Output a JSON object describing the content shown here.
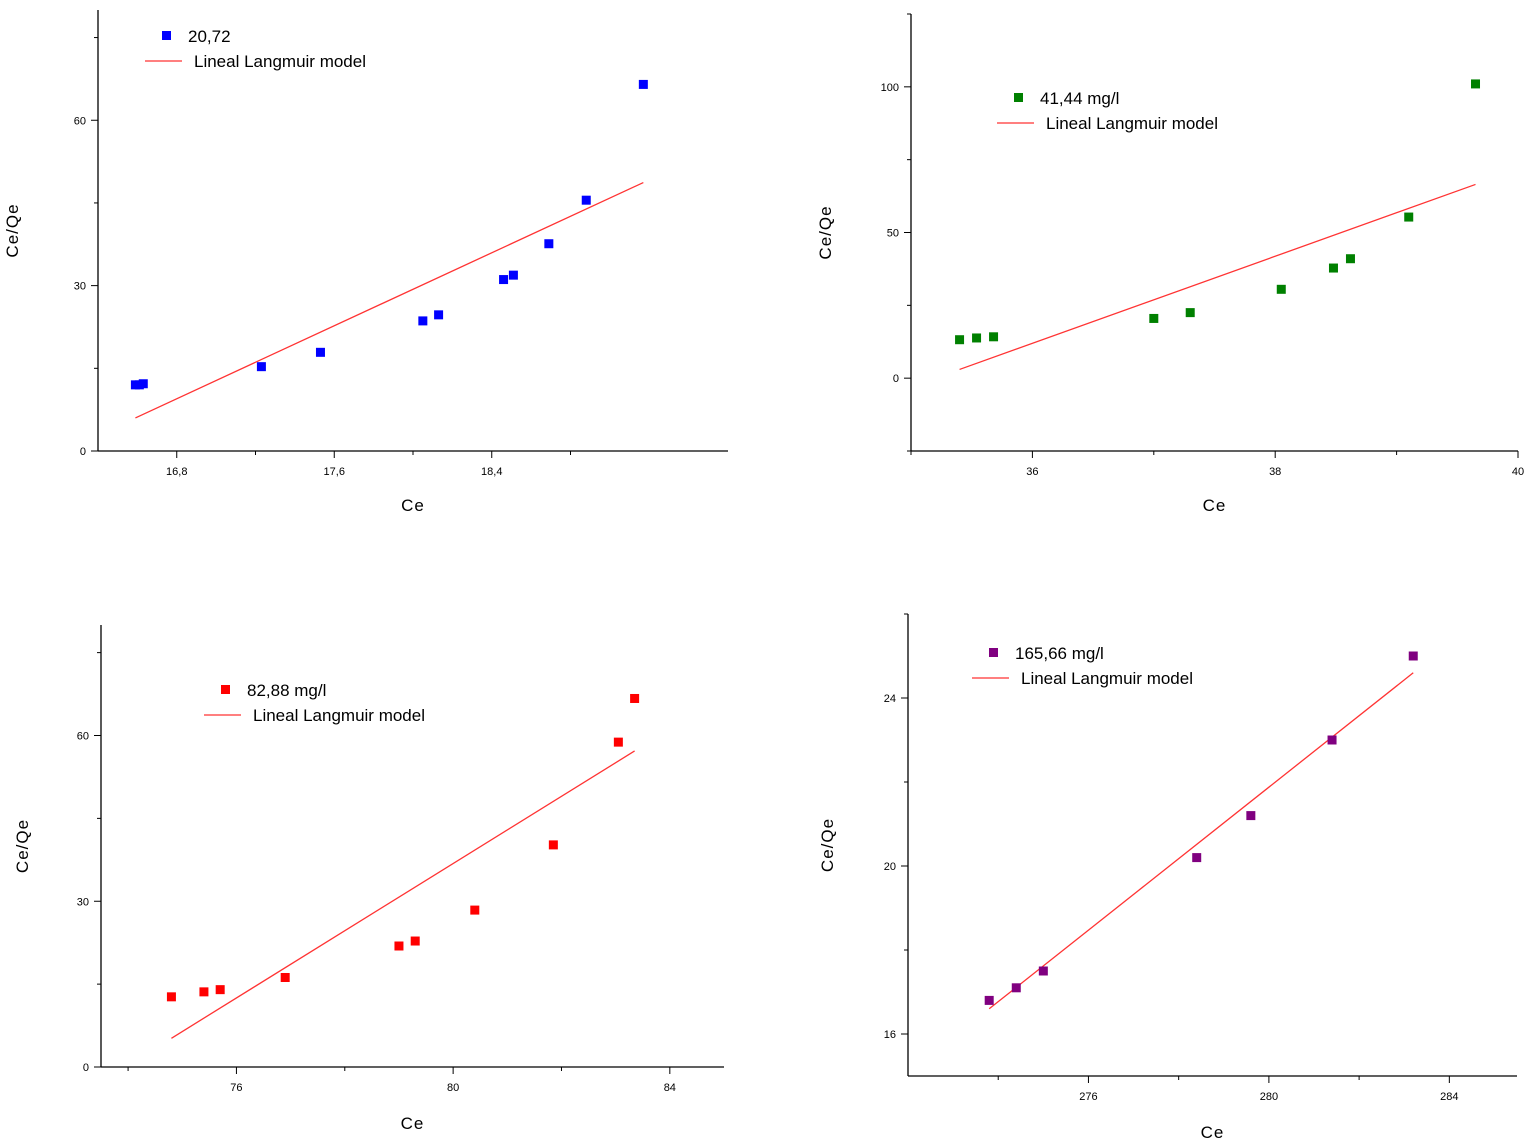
{
  "chart_data": [
    {
      "type": "scatter",
      "xlabel": "Ce",
      "ylabel": "Ce/Qe",
      "xlim": [
        16.4,
        19.6
      ],
      "ylim": [
        0,
        80
      ],
      "xticks_major": [
        16.8,
        17.6,
        18.4
      ],
      "xtick_labels": [
        "16,8",
        "17,6",
        "18,4"
      ],
      "xticks_minor": [
        17.2,
        18.0,
        18.8
      ],
      "yticks_major": [
        0,
        30,
        60
      ],
      "ytick_labels": [
        "0",
        "30",
        "60"
      ],
      "yticks_minor": [
        15,
        45,
        75
      ],
      "legend_position": "top-left",
      "series": [
        {
          "name": "20,72",
          "kind": "points",
          "color": "#0000ff",
          "x": [
            16.59,
            16.61,
            16.63,
            17.23,
            17.53,
            18.05,
            18.13,
            18.46,
            18.51,
            18.69,
            18.88,
            19.17
          ],
          "y": [
            12.0,
            12.0,
            12.2,
            15.3,
            17.9,
            23.6,
            24.7,
            31.1,
            31.9,
            37.6,
            45.5,
            66.5
          ]
        },
        {
          "name": "Lineal Langmuir model",
          "kind": "line",
          "color": "#ff3333",
          "x": [
            16.59,
            19.17
          ],
          "y": [
            6.0,
            48.7
          ]
        }
      ]
    },
    {
      "type": "scatter",
      "xlabel": "Ce",
      "ylabel": "Ce/Qe",
      "xlim": [
        35.0,
        40.0
      ],
      "ylim": [
        -25,
        125
      ],
      "xticks_major": [
        36,
        38,
        40
      ],
      "xtick_labels": [
        "36",
        "38",
        "40"
      ],
      "xticks_minor": [
        35,
        37,
        39
      ],
      "yticks_major": [
        0,
        50,
        100
      ],
      "ytick_labels": [
        "0",
        "50",
        "100"
      ],
      "yticks_minor": [
        -25,
        25,
        75,
        125
      ],
      "legend_position": "top-left",
      "series": [
        {
          "name": "41,44 mg/l",
          "kind": "points",
          "color": "#008000",
          "x": [
            35.4,
            35.54,
            35.68,
            37.0,
            37.3,
            38.05,
            38.48,
            38.62,
            39.1,
            39.65
          ],
          "y": [
            13.2,
            13.8,
            14.2,
            20.5,
            22.5,
            30.5,
            37.8,
            41.0,
            55.3,
            101.0
          ]
        },
        {
          "name": "Lineal Langmuir model",
          "kind": "line",
          "color": "#ff3333",
          "x": [
            35.4,
            39.65
          ],
          "y": [
            3.0,
            66.5
          ]
        }
      ]
    },
    {
      "type": "scatter",
      "xlabel": "Ce",
      "ylabel": "Ce/Qe",
      "xlim": [
        73.5,
        85.0
      ],
      "ylim": [
        0,
        80
      ],
      "xticks_major": [
        76,
        80,
        84
      ],
      "xtick_labels": [
        "76",
        "80",
        "84"
      ],
      "xticks_minor": [
        74,
        78,
        82
      ],
      "yticks_major": [
        0,
        30,
        60
      ],
      "ytick_labels": [
        "0",
        "30",
        "60"
      ],
      "yticks_minor": [
        15,
        45,
        75
      ],
      "legend_position": "top-left",
      "series": [
        {
          "name": "82,88 mg/l",
          "kind": "points",
          "color": "#ff0000",
          "x": [
            74.8,
            75.4,
            75.7,
            76.9,
            79.0,
            79.3,
            80.4,
            81.85,
            83.05,
            83.35
          ],
          "y": [
            12.7,
            13.6,
            14.0,
            16.2,
            21.9,
            22.8,
            28.4,
            40.2,
            58.8,
            66.7
          ]
        },
        {
          "name": "Lineal Langmuir model",
          "kind": "line",
          "color": "#ff3333",
          "x": [
            74.8,
            83.35
          ],
          "y": [
            5.2,
            57.2
          ]
        }
      ]
    },
    {
      "type": "scatter",
      "xlabel": "Ce",
      "ylabel": "Ce/Qe",
      "xlim": [
        272.0,
        285.5
      ],
      "ylim": [
        15.0,
        26.0
      ],
      "xticks_major": [
        276,
        280,
        284
      ],
      "xtick_labels": [
        "276",
        "280",
        "284"
      ],
      "xticks_minor": [
        274,
        278,
        282
      ],
      "yticks_major": [
        16,
        20,
        24
      ],
      "ytick_labels": [
        "16",
        "20",
        "24"
      ],
      "yticks_minor": [
        18,
        22,
        26
      ],
      "legend_position": "top-left",
      "series": [
        {
          "name": "165,66 mg/l",
          "kind": "points",
          "color": "#800080",
          "x": [
            273.8,
            274.4,
            275.0,
            278.4,
            279.6,
            281.4,
            283.2
          ],
          "y": [
            16.8,
            17.1,
            17.5,
            20.2,
            21.2,
            23.0,
            25.0
          ]
        },
        {
          "name": "Lineal Langmuir model",
          "kind": "line",
          "color": "#ff3333",
          "x": [
            273.8,
            283.2
          ],
          "y": [
            16.6,
            24.6
          ]
        }
      ]
    }
  ]
}
